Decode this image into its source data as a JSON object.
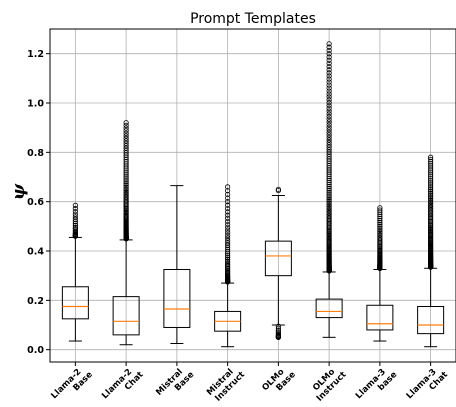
{
  "chart_data": {
    "type": "box",
    "title": "Prompt Templates",
    "xlabel": "",
    "ylabel": "ψ",
    "ylim": [
      -0.05,
      1.3
    ],
    "yticks": [
      0.0,
      0.2,
      0.4,
      0.6,
      0.8,
      1.0,
      1.2
    ],
    "ytick_labels": [
      "0.0",
      "0.2",
      "0.4",
      "0.6",
      "0.8",
      "1.0",
      "1.2"
    ],
    "grid": true,
    "categories": [
      [
        "Llama-2",
        "Base"
      ],
      [
        "Llama-2",
        "Chat"
      ],
      [
        "Mistral",
        "Base"
      ],
      [
        "Mistral",
        "Instruct"
      ],
      [
        "OLMo",
        "Base"
      ],
      [
        "OLMo",
        "Instruct"
      ],
      [
        "Llama-3",
        "base"
      ],
      [
        "Llama-3",
        "Chat"
      ]
    ],
    "boxes": [
      {
        "whislo": 0.035,
        "q1": 0.125,
        "med": 0.175,
        "q3": 0.255,
        "whishi": 0.455,
        "fliers_high": {
          "from": 0.46,
          "to": 0.585,
          "count": 22
        },
        "fliers_low": {
          "from": 0,
          "to": 0,
          "count": 0
        }
      },
      {
        "whislo": 0.02,
        "q1": 0.06,
        "med": 0.115,
        "q3": 0.215,
        "whishi": 0.445,
        "fliers_high": {
          "from": 0.45,
          "to": 0.92,
          "count": 95
        },
        "fliers_low": {
          "from": 0,
          "to": 0,
          "count": 0
        }
      },
      {
        "whislo": 0.025,
        "q1": 0.09,
        "med": 0.165,
        "q3": 0.325,
        "whishi": 0.665,
        "fliers_high": {
          "from": 0,
          "to": 0,
          "count": 0
        },
        "fliers_low": {
          "from": 0,
          "to": 0,
          "count": 0
        }
      },
      {
        "whislo": 0.012,
        "q1": 0.075,
        "med": 0.115,
        "q3": 0.155,
        "whishi": 0.27,
        "fliers_high": {
          "from": 0.275,
          "to": 0.66,
          "count": 55
        },
        "fliers_low": {
          "from": 0,
          "to": 0,
          "count": 0
        }
      },
      {
        "whislo": 0.1,
        "q1": 0.3,
        "med": 0.38,
        "q3": 0.44,
        "whishi": 0.625,
        "fliers_high": {
          "from": 0.645,
          "to": 0.65,
          "count": 2
        },
        "fliers_low": {
          "from": 0.05,
          "to": 0.095,
          "count": 12
        }
      },
      {
        "whislo": 0.05,
        "q1": 0.13,
        "med": 0.155,
        "q3": 0.205,
        "whishi": 0.315,
        "fliers_high": {
          "from": 0.32,
          "to": 1.24,
          "count": 150
        },
        "fliers_low": {
          "from": 0,
          "to": 0,
          "count": 0
        }
      },
      {
        "whislo": 0.035,
        "q1": 0.08,
        "med": 0.105,
        "q3": 0.18,
        "whishi": 0.325,
        "fliers_high": {
          "from": 0.33,
          "to": 0.575,
          "count": 60
        },
        "fliers_low": {
          "from": 0,
          "to": 0,
          "count": 0
        }
      },
      {
        "whislo": 0.012,
        "q1": 0.065,
        "med": 0.1,
        "q3": 0.175,
        "whishi": 0.33,
        "fliers_high": {
          "from": 0.335,
          "to": 0.78,
          "count": 110
        },
        "fliers_low": {
          "from": 0,
          "to": 0,
          "count": 0
        }
      }
    ],
    "colors": {
      "box": "#000000",
      "median": "#ff7f0e",
      "grid": "#b0b0b0"
    }
  }
}
